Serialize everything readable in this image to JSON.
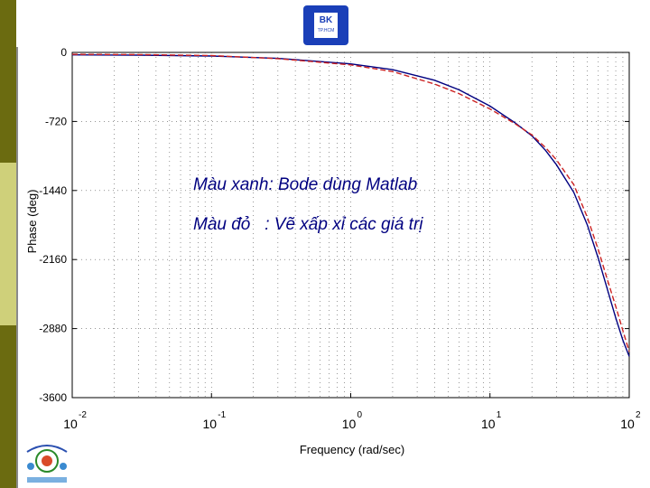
{
  "chart_data": {
    "type": "line",
    "xscale": "log",
    "xlim": [
      0.01,
      100
    ],
    "ylim": [
      -3600,
      0
    ],
    "xlabel": "Frequency  (rad/sec)",
    "ylabel": "Phase (deg)",
    "xticks": [
      {
        "value": 0.01,
        "base": "10",
        "exp": "-2"
      },
      {
        "value": 0.1,
        "base": "10",
        "exp": "-1"
      },
      {
        "value": 1,
        "base": "10",
        "exp": "0"
      },
      {
        "value": 10,
        "base": "10",
        "exp": "1"
      },
      {
        "value": 100,
        "base": "10",
        "exp": "2"
      }
    ],
    "yticks": [
      {
        "value": 0,
        "label": "0"
      },
      {
        "value": -720,
        "label": "-720"
      },
      {
        "value": -1440,
        "label": "-1440"
      },
      {
        "value": -2160,
        "label": "-2160"
      },
      {
        "value": -2880,
        "label": "-2880"
      },
      {
        "value": -3600,
        "label": "-3600"
      }
    ],
    "grid": true,
    "series": [
      {
        "color": "#000080",
        "style": "solid",
        "points": [
          [
            0.01,
            -25
          ],
          [
            0.03,
            -28
          ],
          [
            0.1,
            -38
          ],
          [
            0.3,
            -62
          ],
          [
            1,
            -120
          ],
          [
            2,
            -180
          ],
          [
            4,
            -290
          ],
          [
            6,
            -390
          ],
          [
            10,
            -560
          ],
          [
            15,
            -730
          ],
          [
            20,
            -870
          ],
          [
            25,
            -1020
          ],
          [
            30,
            -1170
          ],
          [
            40,
            -1460
          ],
          [
            50,
            -1800
          ],
          [
            60,
            -2150
          ],
          [
            70,
            -2480
          ],
          [
            80,
            -2770
          ],
          [
            90,
            -3000
          ],
          [
            100,
            -3170
          ]
        ]
      },
      {
        "color": "#cc2222",
        "style": "dashed",
        "points": [
          [
            0.01,
            -20
          ],
          [
            0.03,
            -23
          ],
          [
            0.1,
            -33
          ],
          [
            0.3,
            -65
          ],
          [
            1,
            -130
          ],
          [
            2,
            -200
          ],
          [
            4,
            -330
          ],
          [
            6,
            -430
          ],
          [
            10,
            -590
          ],
          [
            15,
            -740
          ],
          [
            20,
            -860
          ],
          [
            25,
            -990
          ],
          [
            30,
            -1120
          ],
          [
            40,
            -1380
          ],
          [
            50,
            -1720
          ],
          [
            60,
            -2060
          ],
          [
            70,
            -2380
          ],
          [
            80,
            -2650
          ],
          [
            90,
            -2900
          ],
          [
            100,
            -3120
          ]
        ]
      }
    ]
  },
  "annotations": {
    "line1": "Màu xanh: Bode dùng Matlab",
    "line2": "Màu đỏ   : Vẽ xấp xỉ các giá trị"
  },
  "logo": {
    "text": "BK",
    "subtext": "TP.HCM"
  },
  "colors": {
    "sidebar_dark": "#6b6b10",
    "sidebar_light": "#cfd07a",
    "logo_blue": "#1a3fb8",
    "annotation": "#000080"
  }
}
